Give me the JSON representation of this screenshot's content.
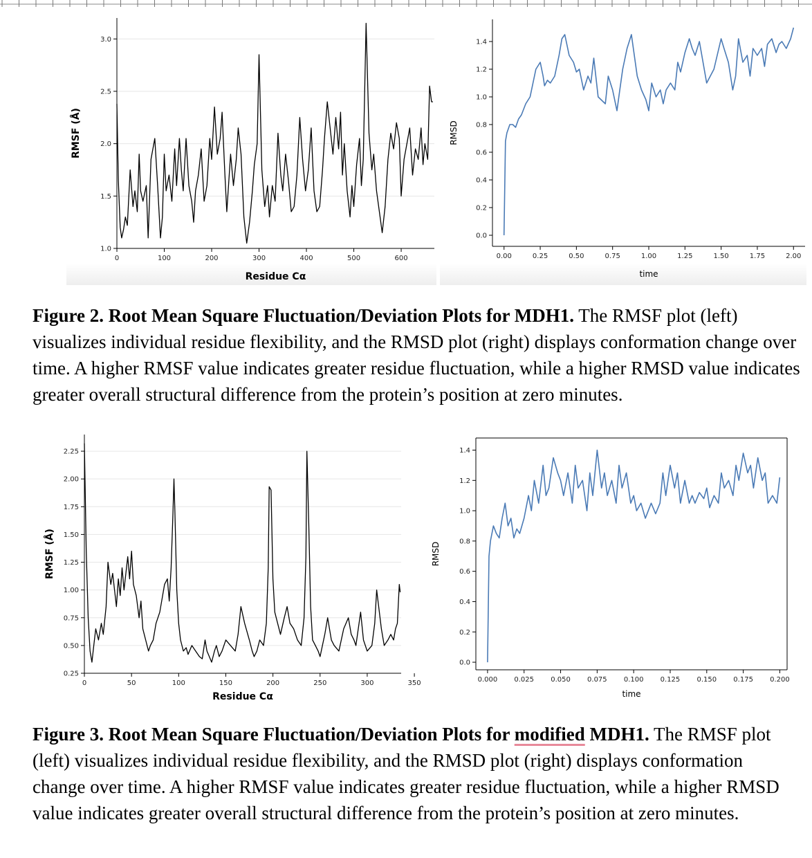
{
  "figure2": {
    "caption_bold": "Figure 2. Root Mean Square Fluctuation/Deviation Plots for MDH1.",
    "caption_text": " The RMSF plot (left) visualizes individual residue flexibility, and the RMSD plot (right) displays conformation change over time. A higher RMSF value indicates greater residue fluctuation, while a higher RMSD value indicates greater overall structural difference from the protein’s position at zero minutes."
  },
  "figure3": {
    "caption_bold_1": "Figure 3. Root Mean Square Fluctuation/Deviation Plots for ",
    "caption_bold_modified": "modified",
    "caption_bold_2": " MDH1.",
    "caption_text": " The RMSF plot (left) visualizes individual residue flexibility, and the RMSD plot (right) displays conformation change over time. A higher RMSF value indicates greater residue fluctuation, while a higher RMSD value indicates greater overall structural difference from the protein’s position at zero minutes."
  },
  "colors": {
    "rmsf_line": "#000000",
    "rmsd_line": "#4a7ab5",
    "grid": "#e6e6e6"
  },
  "chart_data": [
    {
      "id": "fig2-rmsf",
      "type": "line",
      "xlabel": "Residue Cα",
      "ylabel": "RMSF (Å)",
      "xlim": [
        0,
        670
      ],
      "ylim": [
        1.0,
        3.2
      ],
      "xticks": [
        0,
        100,
        200,
        300,
        400,
        500,
        600
      ],
      "yticks": [
        1.0,
        1.5,
        2.0,
        2.5,
        3.0
      ],
      "ytick_decimals": 1,
      "grid": "horizontal",
      "x": [
        0,
        3,
        7,
        10,
        14,
        18,
        22,
        28,
        34,
        38,
        43,
        47,
        50,
        55,
        62,
        66,
        72,
        80,
        86,
        92,
        96,
        100,
        104,
        110,
        116,
        122,
        126,
        132,
        136,
        140,
        146,
        152,
        158,
        162,
        166,
        172,
        178,
        184,
        190,
        196,
        200,
        206,
        212,
        218,
        222,
        228,
        232,
        240,
        246,
        252,
        256,
        262,
        268,
        274,
        280,
        286,
        290,
        296,
        300,
        306,
        312,
        318,
        322,
        328,
        334,
        340,
        346,
        350,
        356,
        362,
        368,
        374,
        380,
        386,
        392,
        398,
        404,
        410,
        416,
        422,
        428,
        434,
        438,
        444,
        450,
        456,
        462,
        468,
        472,
        476,
        480,
        486,
        492,
        496,
        500,
        506,
        512,
        516,
        520,
        526,
        532,
        538,
        542,
        548,
        554,
        560,
        566,
        572,
        578,
        584,
        590,
        596,
        600,
        606,
        612,
        618,
        624,
        630,
        636,
        642,
        646,
        650,
        656,
        660,
        664,
        667
      ],
      "series": [
        {
          "values": [
            2.38,
            1.65,
            1.2,
            1.1,
            1.18,
            1.3,
            1.22,
            1.75,
            1.4,
            1.55,
            1.35,
            1.9,
            1.55,
            1.45,
            1.6,
            1.1,
            1.85,
            2.05,
            1.6,
            1.1,
            1.3,
            1.9,
            1.55,
            1.7,
            1.45,
            1.95,
            1.6,
            2.05,
            1.75,
            1.55,
            2.05,
            1.6,
            1.45,
            1.25,
            1.55,
            1.7,
            1.95,
            1.45,
            1.6,
            2.05,
            1.85,
            2.35,
            1.9,
            2.05,
            2.3,
            1.7,
            1.35,
            1.9,
            1.6,
            1.85,
            2.15,
            1.9,
            1.3,
            1.05,
            1.25,
            1.55,
            1.8,
            2.0,
            2.85,
            1.75,
            1.4,
            1.6,
            1.3,
            1.6,
            1.45,
            2.1,
            1.7,
            1.55,
            1.9,
            1.65,
            1.35,
            1.4,
            1.7,
            2.25,
            1.85,
            1.55,
            1.75,
            2.15,
            1.55,
            1.35,
            1.4,
            1.75,
            2.05,
            2.4,
            2.15,
            1.9,
            2.25,
            1.95,
            2.3,
            1.7,
            2.0,
            1.55,
            1.3,
            1.6,
            1.4,
            1.8,
            2.05,
            1.6,
            1.85,
            3.15,
            2.1,
            1.75,
            1.9,
            1.55,
            1.35,
            1.15,
            1.4,
            1.85,
            2.1,
            1.95,
            2.2,
            2.05,
            1.5,
            1.85,
            2.0,
            2.15,
            1.7,
            1.95,
            1.85,
            2.15,
            1.8,
            2.0,
            1.85,
            2.55,
            2.4,
            2.4
          ]
        }
      ]
    },
    {
      "id": "fig2-rmsd",
      "type": "line",
      "xlabel": "time",
      "ylabel": "RMSD",
      "xlim": [
        -0.08,
        2.08
      ],
      "ylim": [
        -0.08,
        1.56
      ],
      "xticks": [
        0.0,
        0.25,
        0.5,
        0.75,
        1.0,
        1.25,
        1.5,
        1.75,
        2.0
      ],
      "yticks": [
        0.0,
        0.2,
        0.4,
        0.6,
        0.8,
        1.0,
        1.2,
        1.4
      ],
      "xtick_decimals": 2,
      "ytick_decimals": 1,
      "grid": "none",
      "x": [
        0,
        0.01,
        0.02,
        0.04,
        0.06,
        0.08,
        0.1,
        0.12,
        0.15,
        0.18,
        0.2,
        0.22,
        0.25,
        0.27,
        0.28,
        0.3,
        0.32,
        0.35,
        0.38,
        0.4,
        0.42,
        0.45,
        0.48,
        0.5,
        0.52,
        0.55,
        0.58,
        0.6,
        0.62,
        0.65,
        0.7,
        0.72,
        0.75,
        0.78,
        0.8,
        0.82,
        0.85,
        0.88,
        0.9,
        0.92,
        0.95,
        0.98,
        1.0,
        1.02,
        1.05,
        1.08,
        1.1,
        1.12,
        1.15,
        1.18,
        1.2,
        1.22,
        1.25,
        1.28,
        1.3,
        1.32,
        1.35,
        1.38,
        1.4,
        1.45,
        1.5,
        1.52,
        1.55,
        1.58,
        1.6,
        1.62,
        1.65,
        1.68,
        1.7,
        1.72,
        1.75,
        1.78,
        1.8,
        1.82,
        1.85,
        1.88,
        1.9,
        1.92,
        1.95,
        1.98,
        2.0
      ],
      "series": [
        {
          "values": [
            0.0,
            0.68,
            0.74,
            0.8,
            0.8,
            0.78,
            0.84,
            0.87,
            0.95,
            1.0,
            1.1,
            1.2,
            1.25,
            1.15,
            1.08,
            1.12,
            1.1,
            1.15,
            1.3,
            1.42,
            1.45,
            1.3,
            1.25,
            1.18,
            1.2,
            1.05,
            1.15,
            1.1,
            1.28,
            1.0,
            0.95,
            1.15,
            1.05,
            0.9,
            1.05,
            1.2,
            1.35,
            1.45,
            1.3,
            1.15,
            1.05,
            0.98,
            0.9,
            1.1,
            1.0,
            1.05,
            0.95,
            1.05,
            1.1,
            1.05,
            1.25,
            1.18,
            1.32,
            1.42,
            1.35,
            1.3,
            1.4,
            1.22,
            1.1,
            1.2,
            1.42,
            1.35,
            1.25,
            1.05,
            1.15,
            1.42,
            1.25,
            1.3,
            1.15,
            1.35,
            1.3,
            1.35,
            1.22,
            1.38,
            1.42,
            1.32,
            1.38,
            1.4,
            1.35,
            1.42,
            1.5
          ]
        }
      ]
    },
    {
      "id": "fig3-rmsf",
      "type": "line",
      "xlabel": "Residue Cα",
      "ylabel": "RMSF (Å)",
      "xlim": [
        0,
        336
      ],
      "ylim": [
        0.25,
        2.4
      ],
      "xticks": [
        0,
        50,
        100,
        150,
        200,
        250,
        300,
        350
      ],
      "yticks": [
        0.25,
        0.5,
        0.75,
        1.0,
        1.25,
        1.5,
        1.75,
        2.0,
        2.25
      ],
      "ytick_decimals": 2,
      "grid": "horizontal",
      "x": [
        0,
        2,
        4,
        6,
        8,
        10,
        12,
        15,
        18,
        20,
        23,
        25,
        28,
        30,
        32,
        34,
        36,
        38,
        40,
        42,
        44,
        46,
        48,
        50,
        52,
        55,
        58,
        60,
        62,
        65,
        68,
        70,
        73,
        76,
        80,
        85,
        88,
        90,
        92,
        94,
        95,
        96,
        98,
        100,
        102,
        105,
        108,
        110,
        114,
        118,
        122,
        125,
        128,
        130,
        135,
        138,
        140,
        143,
        146,
        150,
        155,
        160,
        163,
        166,
        170,
        175,
        178,
        180,
        183,
        186,
        190,
        193,
        195,
        196,
        198,
        200,
        202,
        205,
        208,
        212,
        215,
        218,
        222,
        226,
        230,
        233,
        235,
        236,
        238,
        240,
        242,
        245,
        248,
        250,
        255,
        258,
        262,
        265,
        270,
        275,
        280,
        283,
        286,
        288,
        290,
        293,
        296,
        300,
        305,
        308,
        310,
        315,
        318,
        322,
        325,
        328,
        330,
        332,
        334,
        335
      ],
      "series": [
        {
          "values": [
            2.32,
            1.35,
            0.75,
            0.45,
            0.35,
            0.5,
            0.65,
            0.55,
            0.7,
            0.6,
            0.85,
            1.25,
            1.05,
            1.15,
            1.0,
            0.85,
            1.1,
            0.95,
            1.2,
            1.0,
            1.15,
            1.3,
            1.1,
            1.35,
            1.05,
            0.95,
            0.75,
            0.9,
            0.65,
            0.55,
            0.45,
            0.5,
            0.55,
            0.7,
            0.8,
            1.05,
            1.1,
            0.9,
            1.2,
            1.7,
            2.0,
            1.7,
            1.0,
            0.7,
            0.55,
            0.45,
            0.48,
            0.42,
            0.5,
            0.45,
            0.4,
            0.38,
            0.55,
            0.45,
            0.35,
            0.45,
            0.5,
            0.4,
            0.45,
            0.55,
            0.5,
            0.45,
            0.6,
            0.85,
            0.7,
            0.55,
            0.45,
            0.4,
            0.45,
            0.55,
            0.5,
            0.7,
            1.2,
            1.93,
            1.9,
            1.1,
            0.8,
            0.7,
            0.6,
            0.75,
            0.85,
            0.7,
            0.65,
            0.55,
            0.5,
            0.75,
            1.3,
            2.25,
            1.6,
            0.85,
            0.55,
            0.5,
            0.45,
            0.4,
            0.6,
            0.75,
            0.55,
            0.5,
            0.45,
            0.65,
            0.75,
            0.6,
            0.55,
            0.5,
            0.62,
            0.8,
            0.55,
            0.45,
            0.5,
            0.7,
            1.0,
            0.65,
            0.5,
            0.55,
            0.6,
            0.55,
            0.65,
            0.7,
            1.05,
            0.98
          ]
        }
      ]
    },
    {
      "id": "fig3-rmsd",
      "type": "line",
      "xlabel": "time",
      "ylabel": "RMSD",
      "xlim": [
        -0.008,
        0.205
      ],
      "ylim": [
        -0.05,
        1.48
      ],
      "xticks": [
        0.0,
        0.025,
        0.05,
        0.075,
        0.1,
        0.125,
        0.15,
        0.175,
        0.2
      ],
      "yticks": [
        0.0,
        0.2,
        0.4,
        0.6,
        0.8,
        1.0,
        1.2,
        1.4
      ],
      "xtick_decimals": 3,
      "ytick_decimals": 1,
      "grid": "none",
      "framed": true,
      "x": [
        0,
        0.001,
        0.002,
        0.004,
        0.006,
        0.008,
        0.01,
        0.012,
        0.014,
        0.016,
        0.018,
        0.02,
        0.022,
        0.025,
        0.028,
        0.03,
        0.032,
        0.035,
        0.038,
        0.04,
        0.042,
        0.045,
        0.048,
        0.05,
        0.052,
        0.055,
        0.058,
        0.06,
        0.062,
        0.065,
        0.068,
        0.07,
        0.072,
        0.075,
        0.078,
        0.08,
        0.082,
        0.085,
        0.088,
        0.09,
        0.092,
        0.095,
        0.098,
        0.1,
        0.102,
        0.105,
        0.108,
        0.11,
        0.112,
        0.115,
        0.118,
        0.12,
        0.122,
        0.125,
        0.128,
        0.13,
        0.132,
        0.135,
        0.138,
        0.14,
        0.142,
        0.145,
        0.148,
        0.15,
        0.152,
        0.155,
        0.158,
        0.16,
        0.162,
        0.165,
        0.168,
        0.17,
        0.172,
        0.175,
        0.178,
        0.18,
        0.182,
        0.185,
        0.188,
        0.19,
        0.192,
        0.195,
        0.198,
        0.2
      ],
      "series": [
        {
          "values": [
            0.0,
            0.7,
            0.8,
            0.9,
            0.85,
            0.82,
            0.95,
            1.05,
            0.9,
            0.95,
            0.82,
            0.88,
            0.85,
            0.95,
            1.1,
            1.0,
            1.2,
            1.05,
            1.3,
            1.1,
            1.15,
            1.35,
            1.25,
            1.2,
            1.1,
            1.25,
            1.05,
            1.3,
            1.15,
            1.2,
            1.0,
            1.25,
            1.1,
            1.4,
            1.15,
            1.25,
            1.1,
            1.2,
            1.05,
            1.3,
            1.15,
            1.25,
            1.05,
            1.1,
            1.0,
            1.05,
            0.95,
            1.0,
            1.05,
            0.98,
            1.05,
            1.25,
            1.1,
            1.3,
            1.15,
            1.25,
            1.05,
            1.2,
            1.05,
            1.1,
            1.05,
            1.12,
            1.08,
            1.15,
            1.02,
            1.1,
            1.05,
            1.25,
            1.15,
            1.2,
            1.1,
            1.3,
            1.2,
            1.38,
            1.25,
            1.3,
            1.15,
            1.35,
            1.2,
            1.25,
            1.05,
            1.1,
            1.05,
            1.22
          ]
        }
      ]
    }
  ]
}
